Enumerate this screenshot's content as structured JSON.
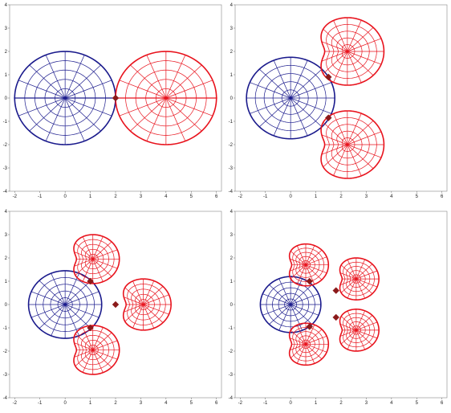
{
  "chart_data": [
    {
      "type": "scatter",
      "xlim": [
        -2.2,
        6.2
      ],
      "ylim": [
        -4,
        4
      ],
      "xticks": [
        "-2",
        "-1",
        "0",
        "1",
        "2",
        "3",
        "4",
        "5",
        "6"
      ],
      "yticks": [
        "-4",
        "-3",
        "-2",
        "-1",
        "0",
        "1",
        "2",
        "3",
        "4"
      ],
      "grid": false,
      "colors": {
        "blue": "#1a1a8c",
        "red": "#e8121c",
        "marker": "#8b1a1a"
      },
      "polar_plots": [
        {
          "color": "blue",
          "center": [
            0,
            0
          ],
          "radius": 2,
          "shape": "circle"
        },
        {
          "color": "red",
          "center": [
            4,
            0
          ],
          "radius": 2,
          "shape": "circle"
        }
      ],
      "markers": [
        [
          2,
          0
        ]
      ]
    },
    {
      "type": "scatter",
      "xlim": [
        -2.2,
        6.2
      ],
      "ylim": [
        -4,
        4
      ],
      "xticks": [
        "-2",
        "-1",
        "0",
        "1",
        "2",
        "3",
        "4",
        "5",
        "6"
      ],
      "yticks": [
        "-4",
        "-3",
        "-2",
        "-1",
        "0",
        "1",
        "2",
        "3",
        "4"
      ],
      "grid": false,
      "colors": {
        "blue": "#1a1a8c",
        "red": "#e8121c",
        "marker": "#8b1a1a"
      },
      "polar_plots": [
        {
          "color": "blue",
          "center": [
            0,
            0
          ],
          "radius": 1.75,
          "shape": "circle"
        },
        {
          "color": "red",
          "center": [
            2.25,
            2
          ],
          "radius": 1.45,
          "shape": "cardioid"
        },
        {
          "color": "red",
          "center": [
            2.25,
            -2
          ],
          "radius": 1.45,
          "shape": "cardioid"
        }
      ],
      "markers": [
        [
          1.5,
          0.9
        ],
        [
          1.5,
          -0.85
        ]
      ]
    },
    {
      "type": "scatter",
      "xlim": [
        -2.2,
        6.2
      ],
      "ylim": [
        -4,
        4
      ],
      "xticks": [
        "-2",
        "-1",
        "0",
        "1",
        "2",
        "3",
        "4",
        "5",
        "6"
      ],
      "yticks": [
        "-4",
        "-3",
        "-2",
        "-1",
        "0",
        "1",
        "2",
        "3",
        "4"
      ],
      "grid": false,
      "colors": {
        "blue": "#1a1a8c",
        "red": "#e8121c",
        "marker": "#8b1a1a"
      },
      "polar_plots": [
        {
          "color": "blue",
          "center": [
            0,
            0
          ],
          "radius": 1.45,
          "shape": "circle"
        },
        {
          "color": "red",
          "center": [
            1.1,
            1.95
          ],
          "radius": 1.05,
          "shape": "cardioid"
        },
        {
          "color": "red",
          "center": [
            1.1,
            -1.95
          ],
          "radius": 1.05,
          "shape": "cardioid"
        },
        {
          "color": "red",
          "center": [
            3.1,
            0
          ],
          "radius": 1.1,
          "shape": "cardioid"
        }
      ],
      "markers": [
        [
          1.0,
          1.0
        ],
        [
          1.0,
          -1.0
        ],
        [
          2.0,
          0
        ]
      ]
    },
    {
      "type": "scatter",
      "xlim": [
        -2.2,
        6.2
      ],
      "ylim": [
        -4,
        4
      ],
      "xticks": [
        "-2",
        "-1",
        "0",
        "1",
        "2",
        "3",
        "4",
        "5",
        "6"
      ],
      "yticks": [
        "-4",
        "-3",
        "-2",
        "-1",
        "0",
        "1",
        "2",
        "3",
        "4"
      ],
      "grid": false,
      "colors": {
        "blue": "#1a1a8c",
        "red": "#e8121c",
        "marker": "#8b1a1a"
      },
      "polar_plots": [
        {
          "color": "blue",
          "center": [
            0,
            0
          ],
          "radius": 1.2,
          "shape": "circle"
        },
        {
          "color": "red",
          "center": [
            0.6,
            1.7
          ],
          "radius": 0.9,
          "shape": "cardioid"
        },
        {
          "color": "red",
          "center": [
            0.6,
            -1.7
          ],
          "radius": 0.9,
          "shape": "cardioid"
        },
        {
          "color": "red",
          "center": [
            2.6,
            1.1
          ],
          "radius": 0.9,
          "shape": "cardioid"
        },
        {
          "color": "red",
          "center": [
            2.6,
            -1.1
          ],
          "radius": 0.9,
          "shape": "cardioid"
        }
      ],
      "markers": [
        [
          0.75,
          1.0
        ],
        [
          0.75,
          -0.95
        ],
        [
          1.8,
          0.6
        ],
        [
          1.8,
          -0.55
        ]
      ]
    }
  ]
}
